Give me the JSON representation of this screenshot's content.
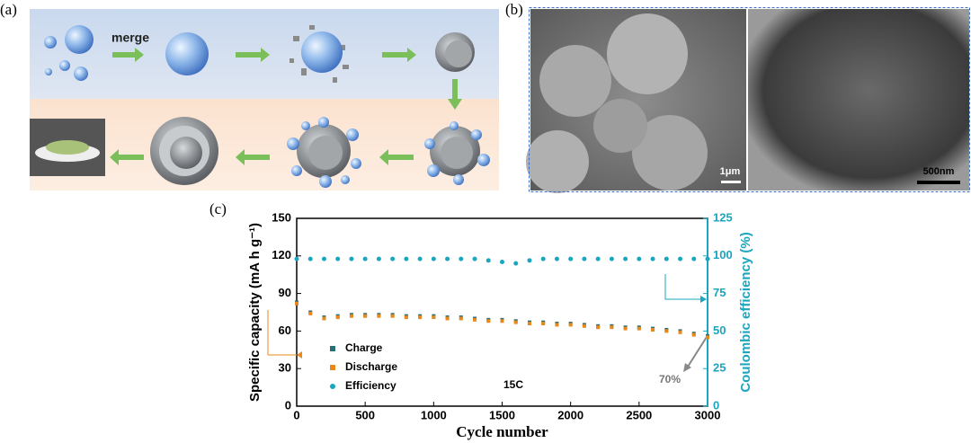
{
  "panel_labels": [
    "(a)",
    "(b)",
    "(c)"
  ],
  "diagram": {
    "merge_label": "merge"
  },
  "micrographs": {
    "scale_bars": [
      "1μm",
      "500nm"
    ]
  },
  "chart_data": {
    "type": "scatter",
    "x_label": "Cycle number",
    "y_label": "Specific capacity (mA h g⁻¹)",
    "y2_label": "Coulombic efficiency (%)",
    "annotations": [
      "15C",
      "70%"
    ],
    "legend": "lower left",
    "x": [
      0,
      100,
      200,
      300,
      400,
      500,
      600,
      700,
      800,
      900,
      1000,
      1100,
      1200,
      1300,
      1400,
      1500,
      1600,
      1700,
      1800,
      1900,
      2000,
      2100,
      2200,
      2300,
      2400,
      2500,
      2600,
      2700,
      2800,
      2900,
      3000
    ],
    "series": [
      {
        "name": "Charge",
        "color": "#2b6e78",
        "values": [
          83,
          75,
          71,
          72,
          73,
          73,
          73,
          73,
          72,
          72,
          72,
          71,
          71,
          70,
          69,
          69,
          68,
          67,
          67,
          66,
          66,
          65,
          64,
          64,
          63,
          63,
          62,
          61,
          60,
          58,
          56
        ]
      },
      {
        "name": "Discharge",
        "color": "#e8891c",
        "values": [
          82,
          74,
          70,
          71,
          72,
          72,
          72,
          72,
          71,
          71,
          71,
          70,
          70,
          69,
          68,
          68,
          67,
          66,
          66,
          65,
          65,
          64,
          63,
          63,
          62,
          62,
          61,
          60,
          59,
          57,
          55
        ]
      },
      {
        "name": "Efficiency",
        "color": "#1ba5bf",
        "axis": "y2",
        "values": [
          98,
          98,
          98,
          98,
          98,
          98,
          98,
          98,
          98,
          98,
          98,
          98,
          98,
          98,
          97,
          96,
          95,
          97,
          98,
          98,
          98,
          98,
          98,
          98,
          98,
          98,
          98,
          98,
          98,
          98,
          98
        ]
      }
    ],
    "xlim": [
      0,
      3000
    ],
    "xticks": [
      0,
      500,
      1000,
      1500,
      2000,
      2500,
      3000
    ],
    "ylim": [
      0,
      150
    ],
    "yticks": [
      0,
      30,
      60,
      90,
      120,
      150
    ],
    "y2lim": [
      0,
      125
    ],
    "y2ticks": [
      0,
      25,
      50,
      75,
      100,
      125
    ]
  }
}
